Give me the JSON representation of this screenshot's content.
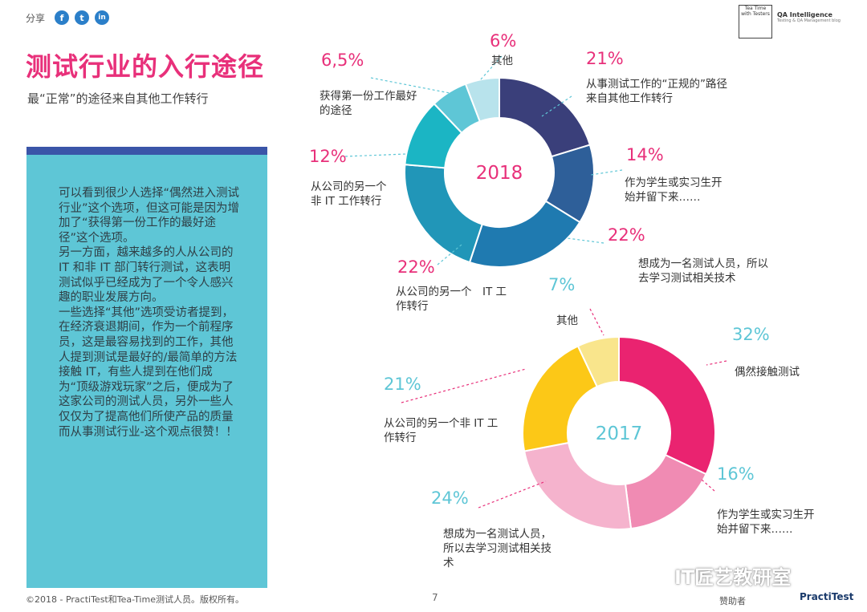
{
  "header": {
    "share_label": "分享",
    "social": [
      "f",
      "t",
      "in"
    ],
    "logo_teatime": "Tea Time with Testers",
    "logo_qa": "QA Intelligence",
    "logo_qa_sub": "Testing & QA Management blog"
  },
  "page": {
    "title": "测试行业的入行途径",
    "subtitle": "最“正常”的途径来自其他工作转行",
    "body": "可以看到很少人选择“偶然进入测试行业”这个选项，但这可能是因为增加了“获得第一份工作的最好途径”这个选项。\n另一方面，越来越多的人从公司的 IT 和非 IT 部门转行测试，这表明测试似乎已经成为了一个令人感兴趣的职业发展方向。\n一些选择“其他”选项受访者提到，在经济衰退期间，作为一个前程序员，这是最容易找到的工作，其他人提到测试是最好的/最简单的方法接触 IT，有些人提到在他们成为“顶级游戏玩家”之后，便成为了这家公司的测试人员，另外一些人仅仅为了提高他们所使产品的质量而从事测试行业-这个观点很赞！！"
  },
  "footer": {
    "copyright": "©2018 - PractiTest和Tea-Time测试人员。版权所有。",
    "page_number": "7",
    "sponsor_label": "赞助者",
    "sponsor_name": "PractiTest",
    "watermark": "IT匠艺教研室"
  },
  "colors": {
    "title": "#e8307a",
    "teal_box": "#5ec6d6",
    "blue_bar": "#3a55a8"
  },
  "chart_data": [
    {
      "type": "pie",
      "title": "2018",
      "center_label": "2018",
      "slices": [
        {
          "label": "从事测试工作的“正规的”路径来自其他工作转行",
          "pct_label": "21%",
          "value": 21,
          "color": "#3a3f7a"
        },
        {
          "label": "作为学生或实习生开始并留下来……",
          "pct_label": "14%",
          "value": 14,
          "color": "#2e5f99"
        },
        {
          "label": "想成为一名测试人员，所以去学习测试相关技术",
          "pct_label": "22%",
          "value": 22,
          "color": "#1f7ab0"
        },
        {
          "label": "从公司的另一个　IT 工作转行",
          "pct_label": "22%",
          "value": 22,
          "color": "#2196b8"
        },
        {
          "label": "从公司的另一个非 IT 工作转行",
          "pct_label": "12%",
          "value": 12,
          "color": "#1bb5c4"
        },
        {
          "label": "获得第一份工作最好的途径",
          "pct_label": "6,5%",
          "value": 6.5,
          "color": "#5ec6d6"
        },
        {
          "label": "其他",
          "pct_label": "6%",
          "value": 6,
          "color": "#b8e3ec"
        }
      ]
    },
    {
      "type": "pie",
      "title": "2017",
      "center_label": "2017",
      "slices": [
        {
          "label": "偶然接触测试",
          "pct_label": "32%",
          "value": 32,
          "color": "#ea2370"
        },
        {
          "label": "作为学生或实习生开始并留下来……",
          "pct_label": "16%",
          "value": 16,
          "color": "#f08bb3"
        },
        {
          "label": "想成为一名测试人员，所以去学习测试相关技术",
          "pct_label": "24%",
          "value": 24,
          "color": "#f5b3cd"
        },
        {
          "label": "从公司的另一个非 IT 工作转行",
          "pct_label": "21%",
          "value": 21,
          "color": "#fcc817"
        },
        {
          "label": "其他",
          "pct_label": "7%",
          "value": 7,
          "color": "#f9e58c"
        }
      ]
    }
  ]
}
